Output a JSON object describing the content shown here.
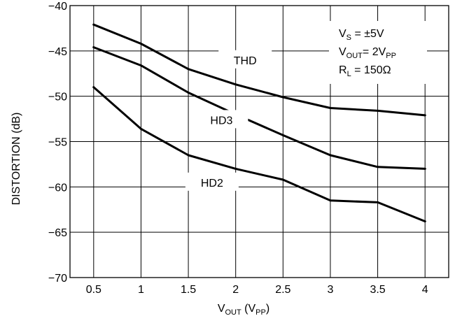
{
  "chart_data": {
    "type": "line",
    "title": "",
    "xlabel_main": "V",
    "xlabel_sub": "OUT",
    "xlabel_paren_open": " (V",
    "xlabel_paren_sub": "PP",
    "xlabel_paren_close": ")",
    "ylabel": "DISTORTION (dB)",
    "xlim": [
      0.25,
      4.25
    ],
    "ylim": [
      -70,
      -40
    ],
    "x_ticks": [
      {
        "value": 0.5,
        "label": "0.5"
      },
      {
        "value": 1,
        "label": "1"
      },
      {
        "value": 1.5,
        "label": "1.5"
      },
      {
        "value": 2,
        "label": "2"
      },
      {
        "value": 2.5,
        "label": "2.5"
      },
      {
        "value": 3,
        "label": "3"
      },
      {
        "value": 3.5,
        "label": "3.5"
      },
      {
        "value": 4,
        "label": "4"
      }
    ],
    "y_ticks": [
      {
        "value": -40,
        "label": "−40"
      },
      {
        "value": -45,
        "label": "−45"
      },
      {
        "value": -50,
        "label": "−50"
      },
      {
        "value": -55,
        "label": "−55"
      },
      {
        "value": -60,
        "label": "−60"
      },
      {
        "value": -65,
        "label": "−65"
      },
      {
        "value": -70,
        "label": "−70"
      }
    ],
    "grid": true,
    "x": [
      0.5,
      1,
      1.5,
      2,
      2.5,
      3,
      3.5,
      4
    ],
    "series": [
      {
        "name": "THD",
        "values": [
          -42.1,
          -44.2,
          -47.0,
          -48.7,
          -50.1,
          -51.3,
          -51.6,
          -52.1
        ]
      },
      {
        "name": "HD3",
        "values": [
          -44.6,
          -46.6,
          -49.6,
          -52.0,
          -54.3,
          -56.5,
          -57.8,
          -58.0
        ]
      },
      {
        "name": "HD2",
        "values": [
          -49.0,
          -53.6,
          -56.5,
          -58.0,
          -59.2,
          -61.5,
          -61.7,
          -63.8
        ]
      }
    ],
    "series_label_anchor": [
      {
        "name": "THD",
        "x": 2.1,
        "y": -46.0
      },
      {
        "name": "HD3",
        "x": 1.85,
        "y": -52.6
      },
      {
        "name": "HD2",
        "x": 1.75,
        "y": -59.5
      }
    ],
    "conditions": [
      {
        "main": "V",
        "sub": "S",
        "rest": " = ±5V"
      },
      {
        "main": "V",
        "sub": "OUT",
        "rest": "= 2V",
        "sub2": "PP"
      },
      {
        "main": "R",
        "sub": "L",
        "rest": " = 150Ω"
      }
    ],
    "colors": {
      "line": "#000000",
      "grid": "#000000",
      "background": "#ffffff"
    }
  }
}
